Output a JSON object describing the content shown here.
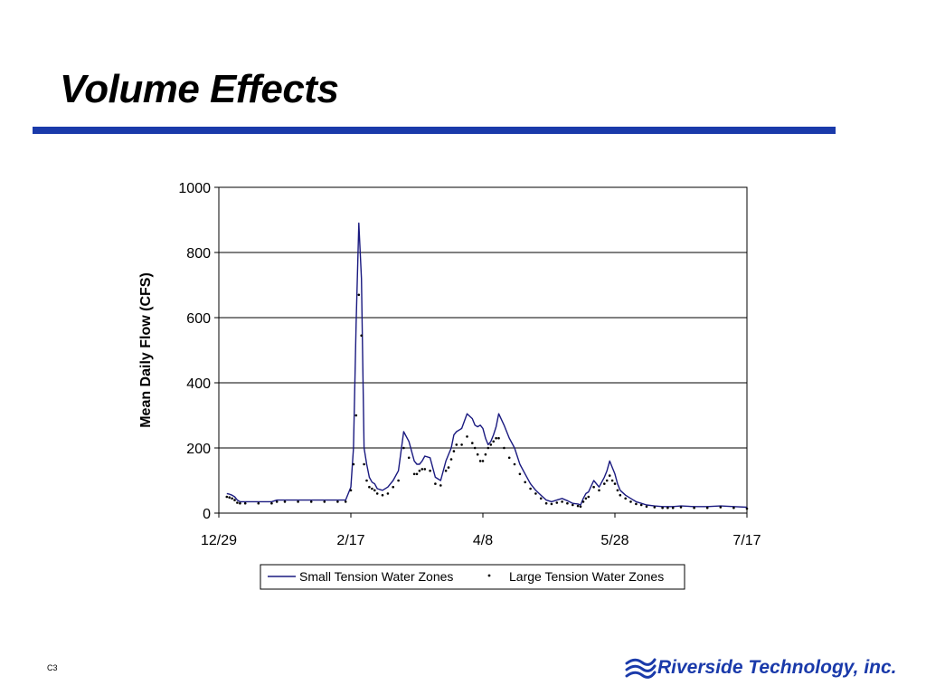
{
  "slide": {
    "title": "Volume Effects",
    "slide_number": "C3",
    "logo_text": "Riverside Technology, inc.",
    "accent_color": "#1a3aaa"
  },
  "chart_data": {
    "type": "line",
    "title": "",
    "xlabel": "",
    "ylabel": "Mean Daily Flow (CFS)",
    "ylim": [
      0,
      1000
    ],
    "yticks": [
      0,
      200,
      400,
      600,
      800,
      1000
    ],
    "x_domain": [
      0,
      200
    ],
    "x_tick_values": [
      0,
      50,
      100,
      150,
      200
    ],
    "x_tick_labels": [
      "12/29",
      "2/17",
      "4/8",
      "5/28",
      "7/17"
    ],
    "grid": "horizontal",
    "legend_position": "bottom",
    "series": [
      {
        "name": "Small Tension Water Zones",
        "style": "line",
        "color": "#1a1a80",
        "x": [
          3,
          4,
          5,
          6,
          7,
          8,
          10,
          15,
          20,
          22,
          25,
          30,
          35,
          40,
          45,
          48,
          50,
          51,
          52,
          53,
          54,
          55,
          56,
          57,
          58,
          59,
          60,
          62,
          64,
          66,
          68,
          70,
          72,
          74,
          75,
          76,
          77,
          78,
          80,
          82,
          84,
          86,
          87,
          88,
          89,
          90,
          92,
          94,
          96,
          97,
          98,
          99,
          100,
          101,
          102,
          103,
          104,
          105,
          106,
          108,
          110,
          112,
          114,
          116,
          118,
          120,
          122,
          124,
          126,
          128,
          130,
          132,
          134,
          136,
          137,
          138,
          139,
          140,
          142,
          144,
          146,
          147,
          148,
          149,
          150,
          151,
          152,
          154,
          156,
          158,
          160,
          162,
          165,
          168,
          170,
          172,
          175,
          180,
          185,
          190,
          195,
          200
        ],
        "y": [
          60,
          58,
          55,
          50,
          40,
          35,
          35,
          35,
          35,
          40,
          40,
          40,
          40,
          40,
          40,
          40,
          80,
          200,
          580,
          890,
          720,
          200,
          150,
          110,
          95,
          90,
          75,
          70,
          80,
          100,
          130,
          250,
          220,
          160,
          150,
          150,
          160,
          175,
          170,
          110,
          100,
          160,
          180,
          200,
          240,
          250,
          260,
          305,
          290,
          270,
          265,
          270,
          260,
          230,
          210,
          220,
          240,
          265,
          305,
          270,
          230,
          200,
          150,
          120,
          90,
          70,
          55,
          40,
          35,
          40,
          45,
          38,
          30,
          28,
          25,
          45,
          60,
          65,
          100,
          80,
          110,
          130,
          160,
          140,
          120,
          90,
          70,
          55,
          45,
          35,
          30,
          25,
          22,
          20,
          20,
          20,
          22,
          20,
          20,
          22,
          20,
          18
        ]
      },
      {
        "name": "Large Tension Water Zones",
        "style": "dots",
        "color": "#000000",
        "x": [
          3,
          4,
          5,
          6,
          7,
          8,
          10,
          15,
          20,
          22,
          25,
          30,
          35,
          40,
          45,
          48,
          50,
          51,
          52,
          53,
          54,
          55,
          56,
          57,
          58,
          59,
          60,
          62,
          64,
          66,
          68,
          70,
          72,
          74,
          75,
          76,
          77,
          78,
          80,
          82,
          84,
          86,
          87,
          88,
          89,
          90,
          92,
          94,
          96,
          97,
          98,
          99,
          100,
          101,
          102,
          103,
          104,
          105,
          106,
          108,
          110,
          112,
          114,
          116,
          118,
          120,
          122,
          124,
          126,
          128,
          130,
          132,
          134,
          136,
          137,
          138,
          139,
          140,
          142,
          144,
          146,
          147,
          148,
          149,
          150,
          151,
          152,
          154,
          156,
          158,
          160,
          162,
          165,
          168,
          170,
          172,
          175,
          180,
          185,
          190,
          195,
          200
        ],
        "y": [
          50,
          48,
          45,
          40,
          32,
          30,
          30,
          30,
          30,
          35,
          35,
          35,
          35,
          35,
          35,
          35,
          70,
          150,
          300,
          670,
          545,
          150,
          100,
          80,
          75,
          70,
          60,
          55,
          60,
          80,
          100,
          200,
          170,
          120,
          120,
          130,
          135,
          135,
          130,
          90,
          85,
          130,
          140,
          165,
          190,
          210,
          210,
          235,
          215,
          200,
          180,
          160,
          160,
          180,
          200,
          210,
          220,
          230,
          230,
          200,
          170,
          150,
          120,
          95,
          75,
          60,
          45,
          30,
          28,
          32,
          35,
          30,
          25,
          22,
          20,
          35,
          45,
          50,
          80,
          70,
          90,
          100,
          115,
          100,
          90,
          70,
          55,
          45,
          35,
          28,
          25,
          20,
          18,
          16,
          16,
          16,
          18,
          16,
          16,
          18,
          16,
          14
        ]
      }
    ]
  }
}
